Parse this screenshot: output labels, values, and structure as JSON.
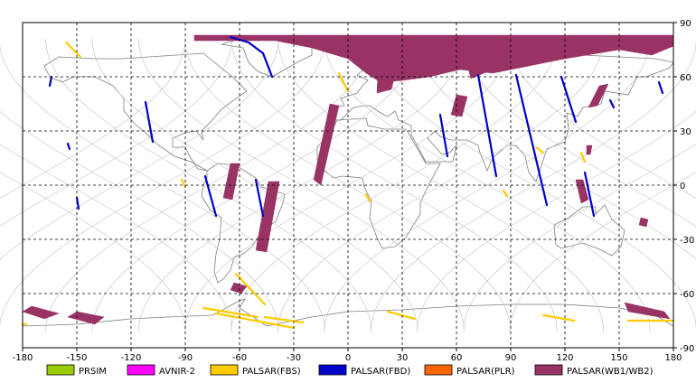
{
  "chart_data": {
    "type": "map",
    "title": "",
    "xlabel": "",
    "ylabel": "",
    "xlim": [
      -180,
      180
    ],
    "ylim": [
      -90,
      90
    ],
    "xticks": [
      -180,
      -150,
      -120,
      -90,
      -60,
      -30,
      0,
      30,
      60,
      90,
      120,
      150,
      180
    ],
    "yticks": [
      90,
      60,
      30,
      0,
      -30,
      -60,
      -90
    ],
    "grid": "dashed",
    "legend_position": "bottom",
    "legend": [
      {
        "name": "PRSIM",
        "color": "#99cc00"
      },
      {
        "name": "AVNIR-2",
        "color": "#ff00ff"
      },
      {
        "name": "PALSAR(FBS)",
        "color": "#ffcc00"
      },
      {
        "name": "PALSAR(FBD)",
        "color": "#0000cc"
      },
      {
        "name": "PALSAR(PLR)",
        "color": "#ff6600"
      },
      {
        "name": "PALSAR(WB1/WB2)",
        "color": "#993366"
      }
    ],
    "series": [
      {
        "name": "PALSAR(WB1/WB2)",
        "color": "#993366",
        "polygons": [
          [
            [
              -85,
              83
            ],
            [
              180,
              83
            ],
            [
              180,
              77
            ],
            [
              168,
              72
            ],
            [
              150,
              75
            ],
            [
              120,
              70
            ],
            [
              100,
              66
            ],
            [
              80,
              62
            ],
            [
              62,
              64
            ],
            [
              45,
              60
            ],
            [
              30,
              58
            ],
            [
              18,
              57
            ],
            [
              10,
              62
            ],
            [
              0,
              70
            ],
            [
              -20,
              76
            ],
            [
              -40,
              80
            ],
            [
              -60,
              80
            ],
            [
              -85,
              80
            ]
          ],
          [
            [
              17,
              72
            ],
            [
              30,
              77
            ],
            [
              24,
              53
            ],
            [
              16,
              51
            ]
          ],
          [
            [
              63,
              78
            ],
            [
              78,
              78
            ],
            [
              80,
              64
            ],
            [
              68,
              59
            ]
          ],
          [
            [
              -10,
              45
            ],
            [
              -5,
              44
            ],
            [
              -15,
              0
            ],
            [
              -19,
              3
            ]
          ],
          [
            [
              -65,
              12
            ],
            [
              -60,
              12
            ],
            [
              -64,
              -8
            ],
            [
              -69,
              -7
            ]
          ],
          [
            [
              -44,
              2
            ],
            [
              -38,
              2
            ],
            [
              -45,
              -37
            ],
            [
              -51,
              -36
            ]
          ],
          [
            [
              60,
              50
            ],
            [
              66,
              49
            ],
            [
              63,
              38
            ],
            [
              57,
              39
            ]
          ],
          [
            [
              139,
              55
            ],
            [
              144,
              56
            ],
            [
              138,
              44
            ],
            [
              133,
              43
            ]
          ],
          [
            [
              132,
              22
            ],
            [
              135,
              22
            ],
            [
              134,
              17
            ],
            [
              132,
              17
            ]
          ],
          [
            [
              126,
              3
            ],
            [
              130,
              3
            ],
            [
              133,
              -8
            ],
            [
              129,
              -10
            ]
          ],
          [
            [
              162,
              -18
            ],
            [
              166,
              -19
            ],
            [
              165,
              -23
            ],
            [
              161,
              -22
            ]
          ],
          [
            [
              -63,
              -54
            ],
            [
              -56,
              -56
            ],
            [
              -59,
              -60
            ],
            [
              -65,
              -58
            ]
          ],
          [
            [
              -175,
              -67
            ],
            [
              -160,
              -71
            ],
            [
              -168,
              -74
            ],
            [
              -180,
              -70
            ]
          ],
          [
            [
              -150,
              -70
            ],
            [
              -135,
              -73
            ],
            [
              -140,
              -77
            ],
            [
              -155,
              -73
            ]
          ],
          [
            [
              153,
              -65
            ],
            [
              175,
              -70
            ],
            [
              178,
              -74
            ],
            [
              155,
              -70
            ]
          ]
        ]
      },
      {
        "name": "PALSAR(FBD)",
        "color": "#0000cc",
        "lines": [
          [
            [
              -65,
              82
            ],
            [
              -55,
              79
            ],
            [
              -47,
              73
            ],
            [
              -42,
              60
            ]
          ],
          [
            [
              -164,
              60
            ],
            [
              -165,
              55
            ]
          ],
          [
            [
              -112,
              46
            ],
            [
              -108,
              24
            ]
          ],
          [
            [
              -79,
              5
            ],
            [
              -73,
              -17
            ]
          ],
          [
            [
              -51,
              3
            ],
            [
              -47,
              -17
            ]
          ],
          [
            [
              -155,
              23
            ],
            [
              -154,
              20
            ]
          ],
          [
            [
              -150,
              -7
            ],
            [
              -149,
              -13
            ]
          ],
          [
            [
              51,
              39
            ],
            [
              55,
              16
            ]
          ],
          [
            [
              72,
              61
            ],
            [
              82,
              5
            ]
          ],
          [
            [
              93,
              61
            ],
            [
              110,
              -11
            ]
          ],
          [
            [
              118,
              60
            ],
            [
              126,
              35
            ]
          ],
          [
            [
              131,
              7
            ],
            [
              136,
              -17
            ]
          ],
          [
            [
              145,
              47
            ],
            [
              147,
              43
            ]
          ],
          [
            [
              172,
              57
            ],
            [
              174,
              51
            ]
          ]
        ]
      },
      {
        "name": "PALSAR(FBS)",
        "color": "#ffcc00",
        "lines": [
          [
            [
              -156,
              79
            ],
            [
              -148,
              71
            ]
          ],
          [
            [
              -5,
              62
            ],
            [
              0,
              52
            ]
          ],
          [
            [
              -62,
              -49
            ],
            [
              -46,
              -66
            ]
          ],
          [
            [
              -73,
              -71
            ],
            [
              -30,
              -79
            ]
          ],
          [
            [
              -80,
              -68
            ],
            [
              -50,
              -73
            ]
          ],
          [
            [
              -46,
              -73
            ],
            [
              -25,
              -76
            ]
          ],
          [
            [
              22,
              -70
            ],
            [
              37,
              -74
            ]
          ],
          [
            [
              108,
              -72
            ],
            [
              125,
              -75
            ]
          ],
          [
            [
              155,
              -75
            ],
            [
              180,
              -75
            ]
          ],
          [
            [
              -180,
              -77
            ],
            [
              -178,
              -77
            ]
          ],
          [
            [
              10,
              -5
            ],
            [
              12,
              -9
            ]
          ],
          [
            [
              86,
              -3
            ],
            [
              88,
              -6
            ]
          ],
          [
            [
              104,
              21
            ],
            [
              108,
              18
            ]
          ],
          [
            [
              129,
              18
            ],
            [
              131,
              13
            ]
          ],
          [
            [
              -92,
              3
            ],
            [
              -90,
              -1
            ]
          ]
        ]
      }
    ]
  }
}
